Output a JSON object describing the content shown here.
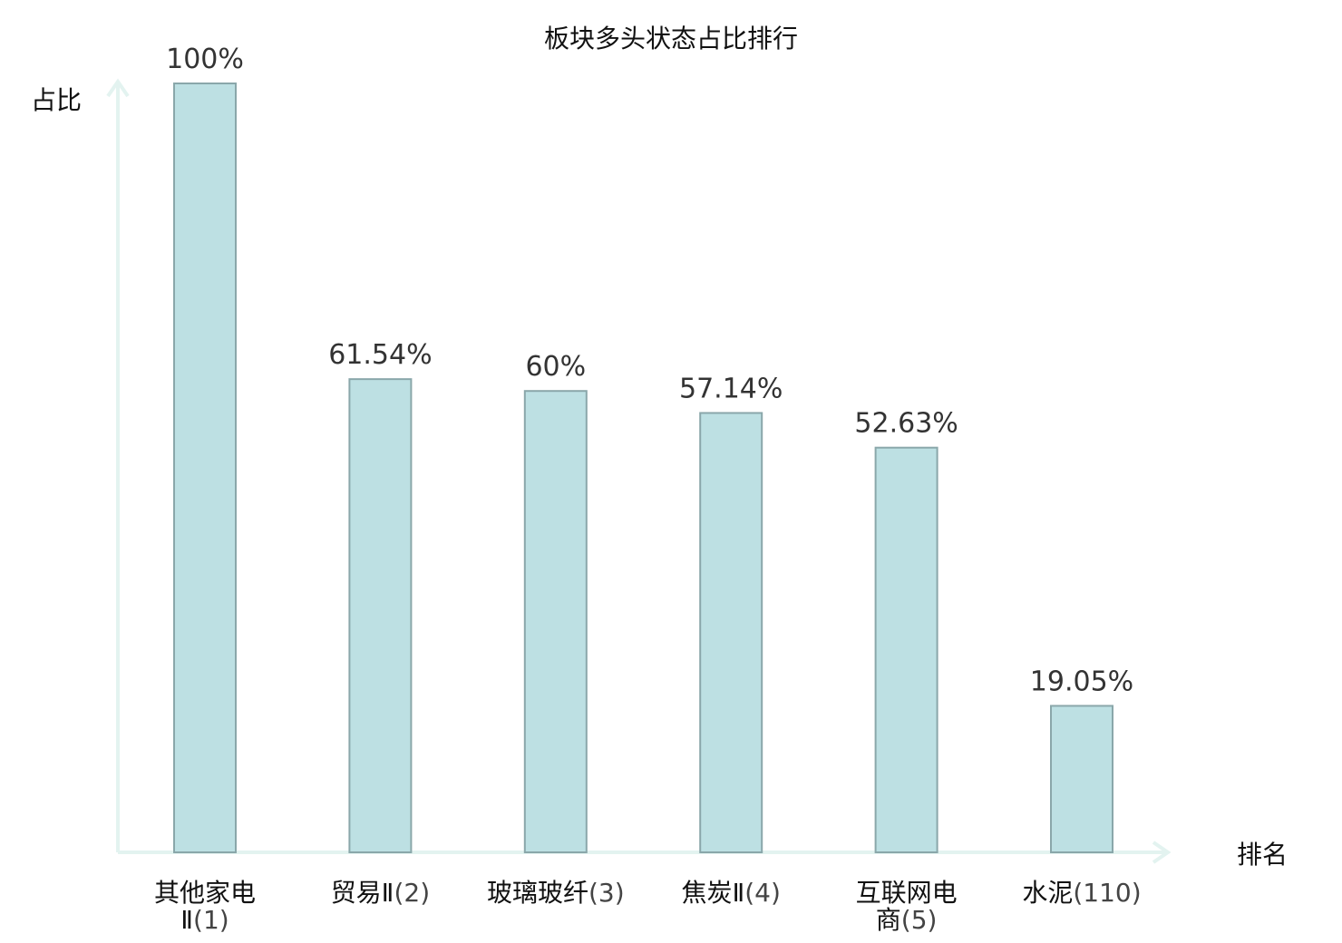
{
  "chart_data": {
    "type": "bar",
    "title": "板块多头状态占比排行",
    "ylabel": "占比",
    "xlabel": "排名",
    "ylim": [
      0,
      100
    ],
    "grid": false,
    "categories": [
      {
        "name": "其他家电",
        "name2": "Ⅱ",
        "rank": "(1)",
        "highlight": false
      },
      {
        "name": "贸易Ⅱ",
        "name2": "",
        "rank": "(2)",
        "highlight": false
      },
      {
        "name": "玻璃玻纤",
        "name2": "",
        "rank": "(3)",
        "highlight": false
      },
      {
        "name": "焦炭Ⅱ",
        "name2": "",
        "rank": "(4)",
        "highlight": false
      },
      {
        "name": "互联网电",
        "name2": "商",
        "rank": "(5)",
        "highlight": false
      },
      {
        "name": "水泥",
        "name2": "",
        "rank": "(110)",
        "highlight": true
      }
    ],
    "values": [
      100,
      61.54,
      60,
      57.14,
      52.63,
      19.05
    ],
    "value_labels": [
      "100%",
      "61.54%",
      "60%",
      "57.14%",
      "52.63%",
      "19.05%"
    ],
    "colors": {
      "bar_fill": "#bde0e3",
      "bar_stroke": "#8aa7aa",
      "axis": "#e3f3f0",
      "highlight": "#e01010"
    }
  }
}
